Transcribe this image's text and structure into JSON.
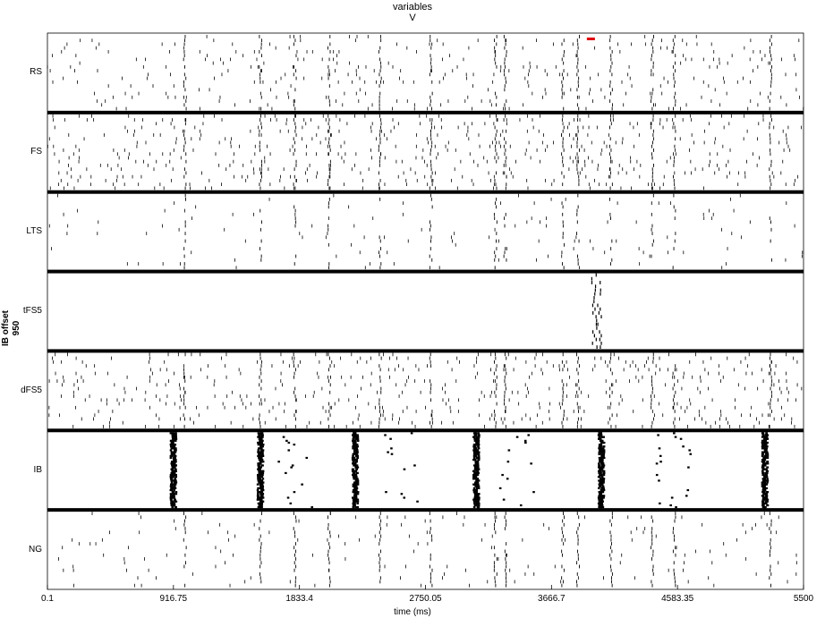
{
  "title": "variables",
  "subtitle": "V",
  "side_label": {
    "line1": "IB offset",
    "line2": "950"
  },
  "chart_data": {
    "type": "scatter",
    "subtype": "raster",
    "title": "variables",
    "subtitle": "V",
    "xlabel": "time (ms)",
    "xlim": [
      0.1,
      5500
    ],
    "xticks": [
      "0.1",
      "916.75",
      "1833.4",
      "2750.05",
      "3666.7",
      "4583.35",
      "5500"
    ],
    "populations": [
      "RS",
      "FS",
      "LTS",
      "tFS5",
      "dFS5",
      "IB",
      "NG"
    ],
    "population_bursts_ms": [
      1000,
      1550,
      1800,
      2050,
      2420,
      2790,
      3260,
      3330,
      3750,
      3860,
      4100,
      4400,
      4560,
      5260
    ],
    "ib_bursts_ms": [
      916.75,
      1550,
      1810,
      2240,
      2570,
      3120,
      3410,
      4030,
      4550,
      5220
    ],
    "tfs5_active_ms": [
      3960,
      4000
    ],
    "marker_color": "#e00000",
    "marker_time_ms": 3950
  }
}
